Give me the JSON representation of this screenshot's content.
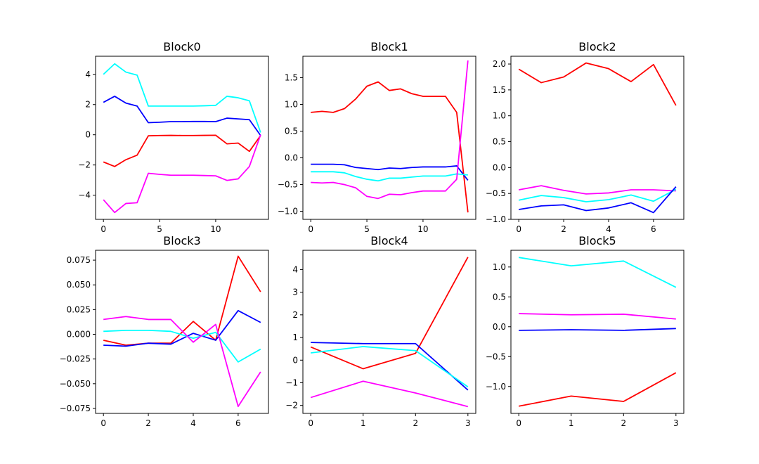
{
  "chart_data": [
    {
      "type": "line",
      "title": "Block0",
      "xlim": [
        -0.7,
        14.7
      ],
      "ylim": [
        -5.6,
        5.2
      ],
      "xticks": [
        0,
        5,
        10
      ],
      "yticks": [
        -4,
        -2,
        0,
        2,
        4
      ],
      "ytick_labels": [
        "−4",
        "−2",
        "0",
        "2",
        "4"
      ],
      "x": [
        0,
        1,
        2,
        3,
        4,
        5,
        6,
        7,
        8,
        9,
        10,
        11,
        12,
        13,
        14
      ],
      "series": [
        {
          "color": "#00ffff",
          "values": [
            4.0,
            4.7,
            4.15,
            3.95,
            1.9,
            1.9,
            1.9,
            1.9,
            1.9,
            1.92,
            1.95,
            2.55,
            2.45,
            2.25,
            0.15
          ]
        },
        {
          "color": "#0000ff",
          "values": [
            2.15,
            2.55,
            2.1,
            1.9,
            0.8,
            0.83,
            0.87,
            0.87,
            0.88,
            0.88,
            0.87,
            1.1,
            1.05,
            1.0,
            -0.05
          ]
        },
        {
          "color": "#ff0000",
          "values": [
            -1.8,
            -2.1,
            -1.65,
            -1.35,
            -0.07,
            -0.05,
            -0.04,
            -0.05,
            -0.05,
            -0.04,
            -0.03,
            -0.6,
            -0.55,
            -1.1,
            -0.05
          ]
        },
        {
          "color": "#ff00ff",
          "values": [
            -4.3,
            -5.15,
            -4.55,
            -4.5,
            -2.55,
            -2.62,
            -2.68,
            -2.68,
            -2.68,
            -2.7,
            -2.72,
            -3.02,
            -2.92,
            -2.1,
            0.0
          ]
        }
      ]
    },
    {
      "type": "line",
      "title": "Block1",
      "xlim": [
        -0.7,
        14.7
      ],
      "ylim": [
        -1.15,
        1.9
      ],
      "xticks": [
        0,
        5,
        10
      ],
      "yticks": [
        -1.0,
        -0.5,
        0.0,
        0.5,
        1.0,
        1.5
      ],
      "ytick_labels": [
        "−1.0",
        "−0.5",
        "0.0",
        "0.5",
        "1.0",
        "1.5"
      ],
      "x": [
        0,
        1,
        2,
        3,
        4,
        5,
        6,
        7,
        8,
        9,
        10,
        11,
        12,
        13,
        14
      ],
      "series": [
        {
          "color": "#ff0000",
          "values": [
            0.85,
            0.87,
            0.85,
            0.92,
            1.1,
            1.34,
            1.42,
            1.26,
            1.29,
            1.2,
            1.15,
            1.15,
            1.15,
            0.85,
            -1.02
          ]
        },
        {
          "color": "#0000ff",
          "values": [
            -0.12,
            -0.12,
            -0.12,
            -0.13,
            -0.18,
            -0.2,
            -0.22,
            -0.19,
            -0.2,
            -0.18,
            -0.17,
            -0.17,
            -0.17,
            -0.15,
            -0.42
          ]
        },
        {
          "color": "#00ffff",
          "values": [
            -0.26,
            -0.26,
            -0.26,
            -0.28,
            -0.35,
            -0.4,
            -0.43,
            -0.38,
            -0.38,
            -0.36,
            -0.34,
            -0.34,
            -0.34,
            -0.3,
            -0.32
          ]
        },
        {
          "color": "#ff00ff",
          "values": [
            -0.46,
            -0.47,
            -0.46,
            -0.5,
            -0.56,
            -0.72,
            -0.76,
            -0.68,
            -0.69,
            -0.65,
            -0.62,
            -0.62,
            -0.62,
            -0.4,
            1.82
          ]
        }
      ]
    },
    {
      "type": "line",
      "title": "Block2",
      "xlim": [
        -0.35,
        7.35
      ],
      "ylim": [
        -1.0,
        2.15
      ],
      "xticks": [
        0,
        2,
        4,
        6
      ],
      "yticks": [
        -1.0,
        -0.5,
        0.0,
        0.5,
        1.0,
        1.5,
        2.0
      ],
      "ytick_labels": [
        "−1.0",
        "−0.5",
        "0.0",
        "0.5",
        "1.0",
        "1.5",
        "2.0"
      ],
      "x": [
        0,
        1,
        2,
        3,
        4,
        5,
        6,
        7
      ],
      "series": [
        {
          "color": "#ff0000",
          "values": [
            1.9,
            1.64,
            1.75,
            2.02,
            1.91,
            1.66,
            1.99,
            1.2
          ]
        },
        {
          "color": "#ff00ff",
          "values": [
            -0.43,
            -0.35,
            -0.44,
            -0.51,
            -0.49,
            -0.43,
            -0.43,
            -0.45
          ]
        },
        {
          "color": "#00ffff",
          "values": [
            -0.63,
            -0.54,
            -0.58,
            -0.66,
            -0.62,
            -0.53,
            -0.65,
            -0.42
          ]
        },
        {
          "color": "#0000ff",
          "values": [
            -0.81,
            -0.74,
            -0.72,
            -0.83,
            -0.78,
            -0.68,
            -0.87,
            -0.37
          ]
        }
      ]
    },
    {
      "type": "line",
      "title": "Block3",
      "xlim": [
        -0.35,
        7.35
      ],
      "ylim": [
        -0.08,
        0.085
      ],
      "xticks": [
        0,
        2,
        4,
        6
      ],
      "yticks": [
        -0.075,
        -0.05,
        -0.025,
        0.0,
        0.025,
        0.05,
        0.075
      ],
      "ytick_labels": [
        "−0.075",
        "−0.050",
        "−0.025",
        "0.000",
        "0.025",
        "0.050",
        "0.075"
      ],
      "x": [
        0,
        1,
        2,
        3,
        4,
        5,
        6,
        7
      ],
      "series": [
        {
          "color": "#ff0000",
          "values": [
            -0.006,
            -0.011,
            -0.009,
            -0.009,
            0.013,
            -0.006,
            0.079,
            0.043
          ]
        },
        {
          "color": "#0000ff",
          "values": [
            -0.011,
            -0.012,
            -0.009,
            -0.01,
            0.001,
            -0.006,
            0.024,
            0.012
          ]
        },
        {
          "color": "#00ffff",
          "values": [
            0.003,
            0.004,
            0.004,
            0.003,
            -0.004,
            0.002,
            -0.028,
            -0.015
          ]
        },
        {
          "color": "#ff00ff",
          "values": [
            0.015,
            0.018,
            0.015,
            0.015,
            -0.008,
            0.01,
            -0.073,
            -0.038
          ]
        }
      ]
    },
    {
      "type": "line",
      "title": "Block4",
      "xlim": [
        -0.15,
        3.15
      ],
      "ylim": [
        -2.35,
        4.85
      ],
      "xticks": [
        0,
        1,
        2,
        3
      ],
      "yticks": [
        -2,
        -1,
        0,
        1,
        2,
        3,
        4
      ],
      "ytick_labels": [
        "−2",
        "−1",
        "0",
        "1",
        "2",
        "3",
        "4"
      ],
      "x": [
        0,
        1,
        2,
        3
      ],
      "series": [
        {
          "color": "#ff0000",
          "values": [
            0.58,
            -0.38,
            0.3,
            4.55
          ]
        },
        {
          "color": "#0000ff",
          "values": [
            0.78,
            0.73,
            0.73,
            -1.32
          ]
        },
        {
          "color": "#00ffff",
          "values": [
            0.32,
            0.6,
            0.42,
            -1.18
          ]
        },
        {
          "color": "#ff00ff",
          "values": [
            -1.65,
            -0.93,
            -1.45,
            -2.05
          ]
        }
      ]
    },
    {
      "type": "line",
      "title": "Block5",
      "xlim": [
        -0.15,
        3.15
      ],
      "ylim": [
        -1.45,
        1.28
      ],
      "xticks": [
        0,
        1,
        2,
        3
      ],
      "yticks": [
        -1.0,
        -0.5,
        0.0,
        0.5,
        1.0
      ],
      "ytick_labels": [
        "−1.0",
        "−0.5",
        "0.0",
        "0.5",
        "1.0"
      ],
      "x": [
        0,
        1,
        2,
        3
      ],
      "series": [
        {
          "color": "#00ffff",
          "values": [
            1.16,
            1.02,
            1.1,
            0.66
          ]
        },
        {
          "color": "#ff00ff",
          "values": [
            0.22,
            0.2,
            0.21,
            0.13
          ]
        },
        {
          "color": "#0000ff",
          "values": [
            -0.06,
            -0.05,
            -0.06,
            -0.03
          ]
        },
        {
          "color": "#ff0000",
          "values": [
            -1.33,
            -1.16,
            -1.25,
            -0.77
          ]
        }
      ]
    }
  ]
}
